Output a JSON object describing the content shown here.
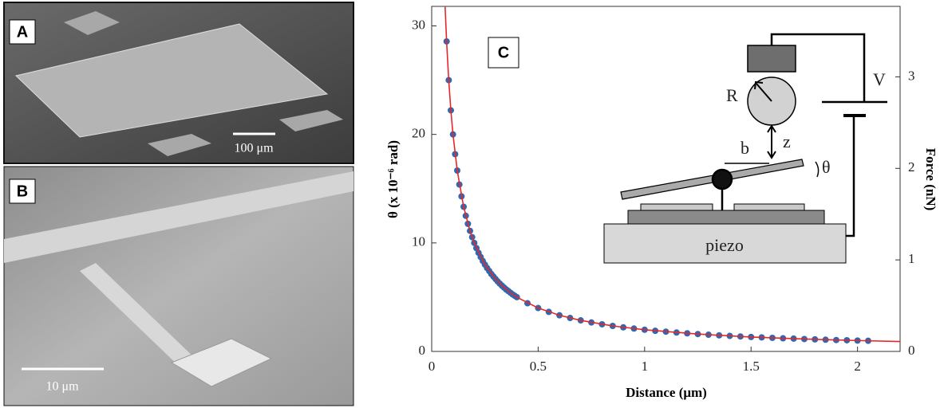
{
  "panel_a": {
    "label": "A",
    "scale_bar": "100 μm"
  },
  "panel_b": {
    "label": "B",
    "scale_bar": "10 μm"
  },
  "chart_data": {
    "type": "scatter",
    "panel_label": "C",
    "x_label": "Distance (μm)",
    "y_label": "θ (x 10⁻⁶ rad)",
    "y2_label": "Force (nN)",
    "xlim": [
      0,
      2.2
    ],
    "xticks": [
      0,
      0.5,
      1,
      1.5,
      2
    ],
    "ylim": [
      0,
      31.8
    ],
    "yticks": [
      0,
      10,
      20,
      30
    ],
    "y2lim": [
      0,
      3.77
    ],
    "y2ticks": [
      0,
      1,
      2,
      3
    ],
    "annotations": {
      "resistor": "R",
      "voltage": "V",
      "gap": "z",
      "lever": "b",
      "angle": "θ",
      "stage": "piezo"
    },
    "series": [
      {
        "type": "scatter",
        "color": "#2f68b0",
        "x": [
          0.07,
          0.08,
          0.09,
          0.1,
          0.11,
          0.12,
          0.13,
          0.14,
          0.15,
          0.16,
          0.17,
          0.18,
          0.19,
          0.2,
          0.21,
          0.22,
          0.23,
          0.24,
          0.25,
          0.26,
          0.27,
          0.28,
          0.29,
          0.3,
          0.31,
          0.32,
          0.33,
          0.34,
          0.35,
          0.36,
          0.37,
          0.38,
          0.39,
          0.4,
          0.45,
          0.5,
          0.55,
          0.6,
          0.65,
          0.7,
          0.75,
          0.8,
          0.85,
          0.9,
          0.95,
          1,
          1.05,
          1.1,
          1.15,
          1.2,
          1.25,
          1.3,
          1.35,
          1.4,
          1.45,
          1.5,
          1.55,
          1.6,
          1.65,
          1.7,
          1.75,
          1.8,
          1.85,
          1.9,
          1.95,
          2,
          2.05
        ],
        "values": [
          28.57,
          25,
          22.22,
          20,
          18.18,
          16.67,
          15.38,
          14.29,
          13.33,
          12.5,
          11.76,
          11.11,
          10.53,
          10,
          9.52,
          9.09,
          8.7,
          8.33,
          8,
          7.69,
          7.41,
          7.14,
          6.9,
          6.67,
          6.45,
          6.25,
          6.06,
          5.88,
          5.71,
          5.56,
          5.41,
          5.26,
          5.13,
          5,
          4.44,
          4,
          3.64,
          3.33,
          3.08,
          2.86,
          2.67,
          2.5,
          2.35,
          2.22,
          2.11,
          2,
          1.9,
          1.82,
          1.74,
          1.67,
          1.6,
          1.54,
          1.48,
          1.43,
          1.38,
          1.33,
          1.29,
          1.25,
          1.21,
          1.18,
          1.14,
          1.11,
          1.08,
          1.05,
          1.03,
          1,
          0.98
        ]
      },
      {
        "type": "line",
        "color": "#e8262a",
        "x": [
          0.063,
          0.07,
          0.08,
          0.09,
          0.1,
          0.12,
          0.15,
          0.18,
          0.2,
          0.25,
          0.3,
          0.35,
          0.4,
          0.5,
          0.6,
          0.7,
          0.85,
          1,
          1.25,
          1.5,
          1.75,
          2,
          2.2
        ],
        "values": [
          31.75,
          28.57,
          25,
          22.22,
          20,
          16.67,
          13.33,
          11.11,
          10,
          8,
          6.67,
          5.71,
          5,
          4,
          3.33,
          2.86,
          2.35,
          2,
          1.6,
          1.33,
          1.14,
          1,
          0.91
        ]
      }
    ]
  }
}
